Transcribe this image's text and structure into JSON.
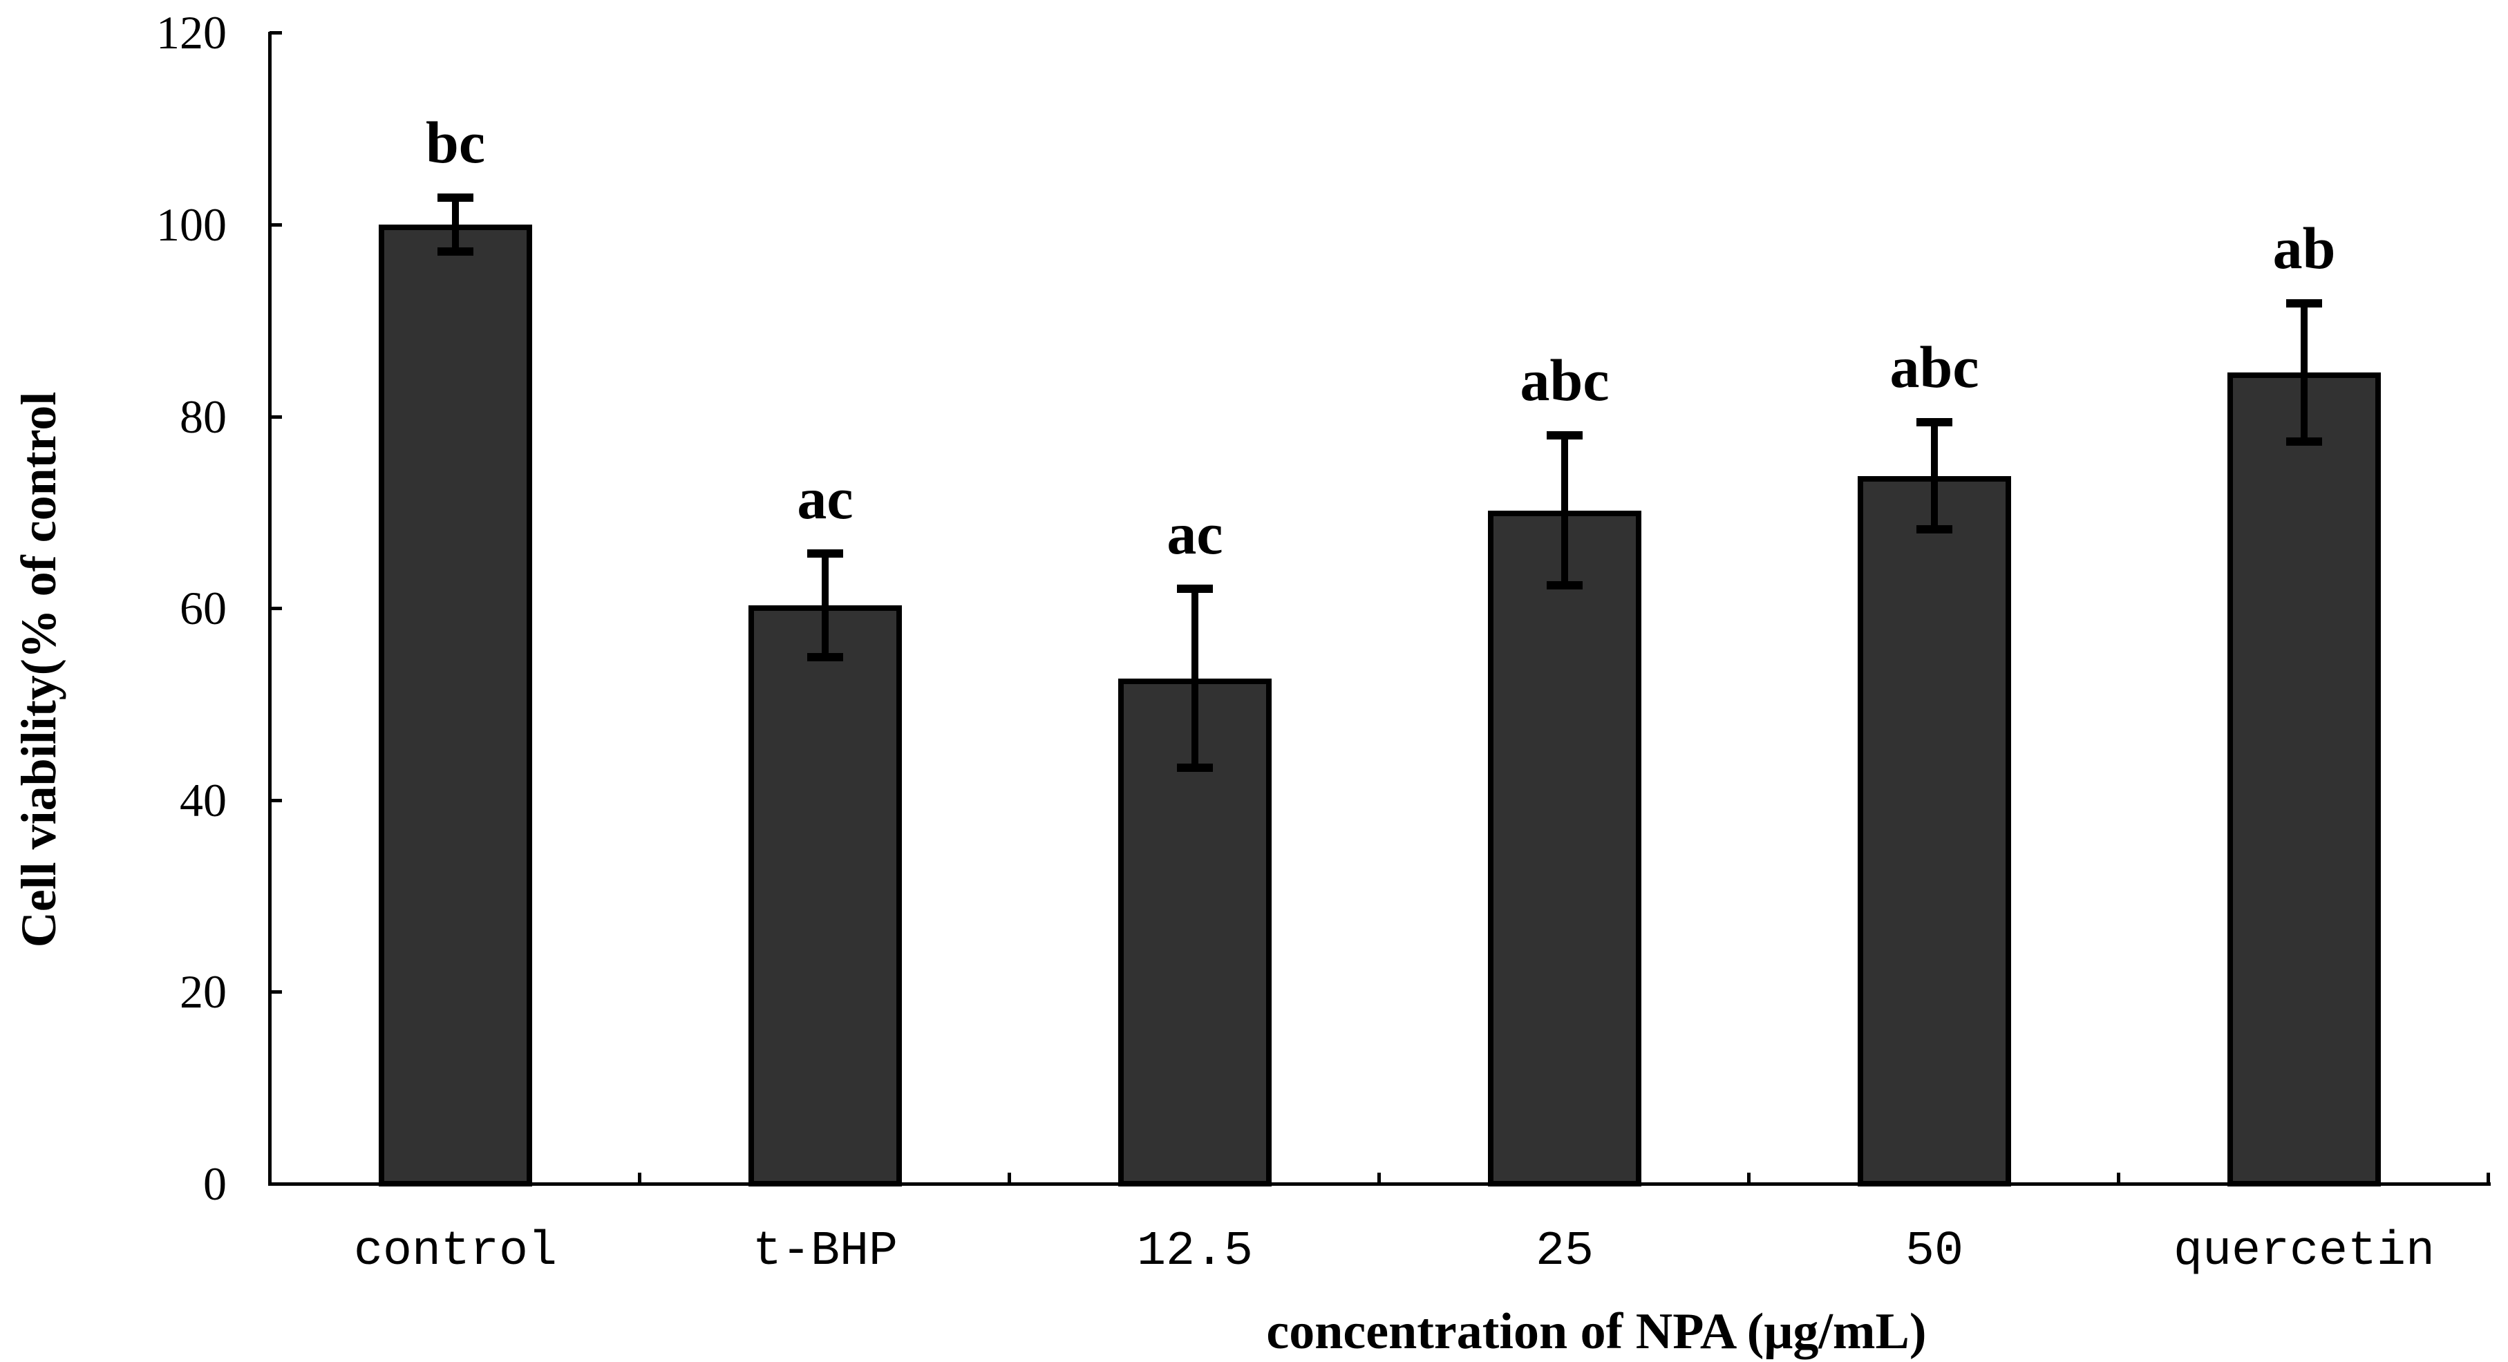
{
  "chart_data": {
    "type": "bar",
    "title": "",
    "xlabel": "concentration of NPA (μg/mL)",
    "ylabel": "Cell viability(% of control",
    "categories": [
      "control",
      "t-BHP",
      "12.5",
      "25",
      "50",
      "quercetin"
    ],
    "values": [
      100,
      60.3,
      52.7,
      70.2,
      73.8,
      84.6
    ],
    "errors": [
      2.8,
      5.4,
      9.3,
      7.8,
      5.6,
      7.2
    ],
    "significance_labels": [
      "bc",
      "ac",
      "ac",
      "abc",
      "abc",
      "ab"
    ],
    "yticks": [
      0,
      20,
      40,
      60,
      80,
      100,
      120
    ],
    "ylim": [
      0,
      120
    ],
    "grid": false,
    "legend": null,
    "bar_fill_color": "#323232",
    "bar_edge_color": "#000000",
    "axis_color": "#000000",
    "background_color": "#ffffff"
  }
}
